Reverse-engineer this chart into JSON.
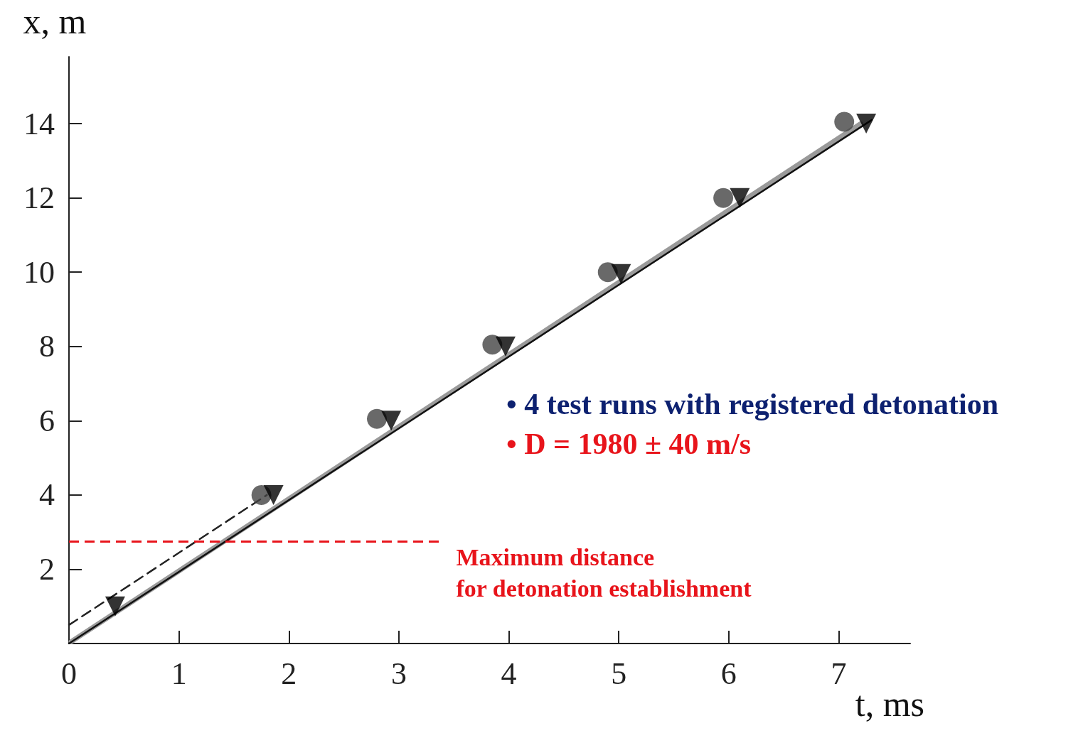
{
  "chart_data": {
    "type": "scatter",
    "xlabel": "t, ms",
    "ylabel": "x, m",
    "xlim": [
      0,
      7.65
    ],
    "ylim": [
      0,
      15.8
    ],
    "xticks": [
      0,
      1,
      2,
      3,
      4,
      5,
      6,
      7
    ],
    "yticks": [
      {
        "value": 0,
        "label": null
      },
      2,
      4,
      6,
      8,
      10,
      12,
      14
    ],
    "grid": false,
    "series": [
      {
        "type": "line",
        "color": "#9a9a9a",
        "x": [
          0.02,
          7.2
        ],
        "values": [
          0.05,
          14.0
        ],
        "marker": "none",
        "line_style": "solid"
      },
      {
        "type": "line",
        "color": "#111111",
        "x": [
          0,
          7.3
        ],
        "values": [
          0,
          14.1
        ],
        "marker": "none",
        "line_style": "solid"
      },
      {
        "type": "line",
        "color": "#222222",
        "x": [
          0,
          1.8
        ],
        "values": [
          0.5,
          4.0
        ],
        "marker": "none",
        "line_style": "dashed"
      },
      {
        "color": "#444444",
        "x": [
          1.75,
          2.8,
          3.85,
          4.9,
          5.95,
          7.05
        ],
        "values": [
          4.0,
          6.05,
          8.05,
          10.0,
          12.0,
          14.05
        ],
        "marker": "circle"
      },
      {
        "color": "#000000",
        "x": [
          0.42,
          1.86,
          2.93,
          3.97,
          5.02,
          6.1,
          7.25
        ],
        "values": [
          1.0,
          4.0,
          6.0,
          8.0,
          9.95,
          12.0,
          14.0
        ],
        "marker": "triangle"
      }
    ],
    "ref_lines": [
      {
        "axis": "y",
        "value": 2.75,
        "label": "Maximum distance\nfor detonation establishment",
        "color": "#e8141b",
        "line_style": "dashed"
      }
    ],
    "annotations": [
      "• 4 test runs with registered detonation",
      "• D = 1980 ± 40 m/s"
    ]
  }
}
